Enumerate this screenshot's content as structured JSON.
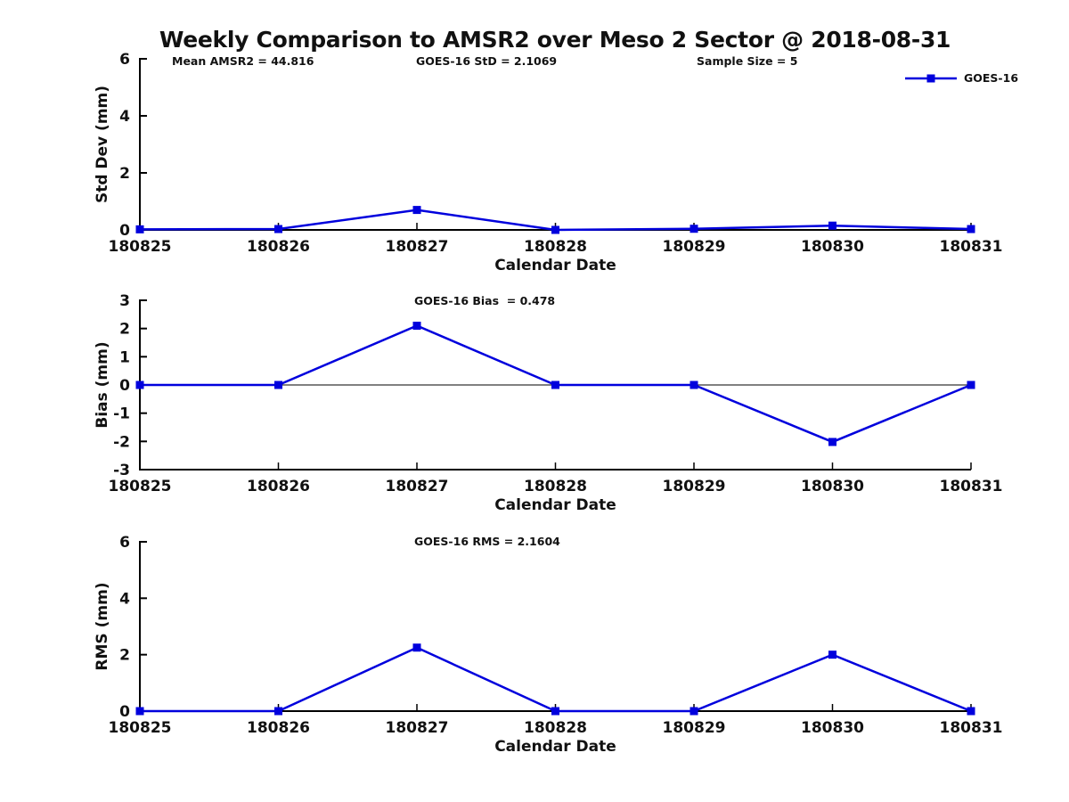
{
  "title": "Weekly Comparison to AMSR2 over Meso 2 Sector @ 2018-08-31",
  "accent_color": "#0000dd",
  "chart_data": [
    {
      "type": "line",
      "title": "",
      "categories": [
        "180825",
        "180826",
        "180827",
        "180828",
        "180829",
        "180830",
        "180831"
      ],
      "series": [
        {
          "name": "GOES-16",
          "color": "#0000dd",
          "marker": "square",
          "values": [
            0.02,
            0.03,
            0.7,
            0.0,
            0.04,
            0.15,
            0.03
          ]
        }
      ],
      "xlabel": "Calendar Date",
      "ylabel": "Std Dev (mm)",
      "ylim": [
        0,
        6
      ],
      "yticks": [
        0,
        2,
        4,
        6
      ],
      "zero_line": false,
      "grid": false,
      "annotations": [
        "Mean AMSR2 = 44.816",
        "GOES-16 StD = 2.1069",
        "Sample Size = 5"
      ],
      "legend": {
        "label": "GOES-16",
        "position": "top-right"
      }
    },
    {
      "type": "line",
      "title": "",
      "categories": [
        "180825",
        "180826",
        "180827",
        "180828",
        "180829",
        "180830",
        "180831"
      ],
      "series": [
        {
          "name": "GOES-16",
          "color": "#0000dd",
          "marker": "square",
          "values": [
            0.0,
            0.0,
            2.1,
            0.0,
            0.0,
            -2.02,
            0.0
          ]
        }
      ],
      "xlabel": "Calendar Date",
      "ylabel": "Bias (mm)",
      "ylim": [
        -3,
        3
      ],
      "yticks": [
        -3,
        -2,
        -1,
        0,
        1,
        2,
        3
      ],
      "zero_line": true,
      "grid": false,
      "annotations": [
        "GOES-16 Bias  = 0.478"
      ]
    },
    {
      "type": "line",
      "title": "",
      "categories": [
        "180825",
        "180826",
        "180827",
        "180828",
        "180829",
        "180830",
        "180831"
      ],
      "series": [
        {
          "name": "GOES-16",
          "color": "#0000dd",
          "marker": "square",
          "values": [
            0.0,
            0.0,
            2.25,
            0.0,
            0.0,
            2.0,
            0.0
          ]
        }
      ],
      "xlabel": "Calendar Date",
      "ylabel": "RMS (mm)",
      "ylim": [
        0,
        6
      ],
      "yticks": [
        0,
        2,
        4,
        6
      ],
      "zero_line": false,
      "grid": false,
      "annotations": [
        "GOES-16 RMS = 2.1604"
      ]
    }
  ]
}
